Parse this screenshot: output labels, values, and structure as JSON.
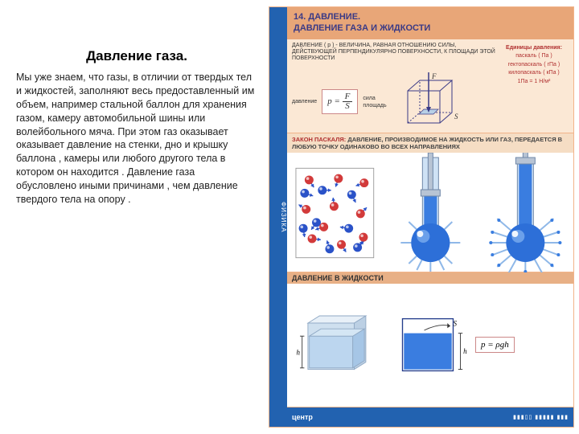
{
  "left": {
    "title": "Давление газа.",
    "body": "Мы уже знаем, что газы, в отличии от твердых тел и жидкостей, заполняют весь предоставленный им объем, например стальной баллон для хранения газом, камеру автомобильной шины или волейбольного мяча. При этом газ оказывает оказывает давление на стенки, дно и крышку баллона , камеры или любого  другого тела в котором он находится . Давление газа обусловлено иными  причинами , чем давление твердого тела на опору ."
  },
  "poster": {
    "spine": "ФИЗИКА",
    "spine_color": "#2262b0",
    "border_color": "#f2b48a",
    "header": {
      "num": "14.",
      "line1": "ДАВЛЕНИЕ.",
      "line2": "ДАВЛЕНИЕ ГАЗА И ЖИДКОСТИ",
      "bg": "#e8a678",
      "fg": "#3a3a86"
    },
    "section1": {
      "bg": "#fbe8d5",
      "definition": "ДАВЛЕНИЕ ( p ) - ВЕЛИЧИНА, РАВНАЯ ОТНОШЕНИЮ СИЛЫ, ДЕЙСТВУЮЩЕЙ ПЕРПЕНДИКУЛЯРНО ПОВЕРХНОСТИ, К ПЛОЩАДИ ЭТОЙ ПОВЕРХНОСТИ",
      "label_pressure": "давление",
      "label_force": "сила",
      "label_area": "площадь",
      "formula": "p = F / S",
      "cube": {
        "stroke": "#3a3a86",
        "arrow": "#3a3a86",
        "shade": "#b8d0e6",
        "F_label": "F",
        "S_label": "S"
      },
      "units": {
        "heading": "Единицы давления:",
        "u1": "паскаль ( Па )",
        "u2": "гектопаскаль ( гПа )",
        "u3": "килопаскаль ( кПа )",
        "u4": "1Па = 1 Н/м²"
      }
    },
    "section2": {
      "law_label": "ЗАКОН ПАСКАЛЯ:",
      "law_text": "ДАВЛЕНИЕ, ПРОИЗВОДИМОЕ НА ЖИДКОСТЬ ИЛИ ГАЗ, ПЕРЕДАЕТСЯ В ЛЮБУЮ ТОЧКУ ОДИНАКОВО ВО ВСЕХ НАПРАВЛЕНИЯХ",
      "law_bg": "#f5ddc4",
      "molecules": {
        "ball_red": "#d23a3a",
        "ball_blue": "#2a52c8",
        "arrow": "#2a52c8",
        "box_stroke": "#999"
      },
      "tubes": {
        "tube_fill": "#cfe2f5",
        "tube_stroke": "#6f87a8",
        "liquid": "#3a7de0",
        "piston": "#b8c4d4",
        "ball": "#2d6fd8",
        "spray": "#8fb8e8",
        "highlight": "#ffffff"
      }
    },
    "section3": {
      "bar_label": "ДАВЛЕНИЕ В ЖИДКОСТИ",
      "bar_bg": "#e8b086",
      "tank1": {
        "glass": "#cfe0ef",
        "glass_edge": "#8fa8c4",
        "water": "#bcd6ef",
        "h_label": "h"
      },
      "tank2": {
        "fill": "#3a7de0",
        "stroke": "#243d8c",
        "S_label": "S",
        "h_label": "h"
      },
      "formula": "p = ρgh"
    },
    "footer": {
      "bg": "#2262b0",
      "logo": "центр",
      "bars_color": "#ffffff"
    }
  }
}
